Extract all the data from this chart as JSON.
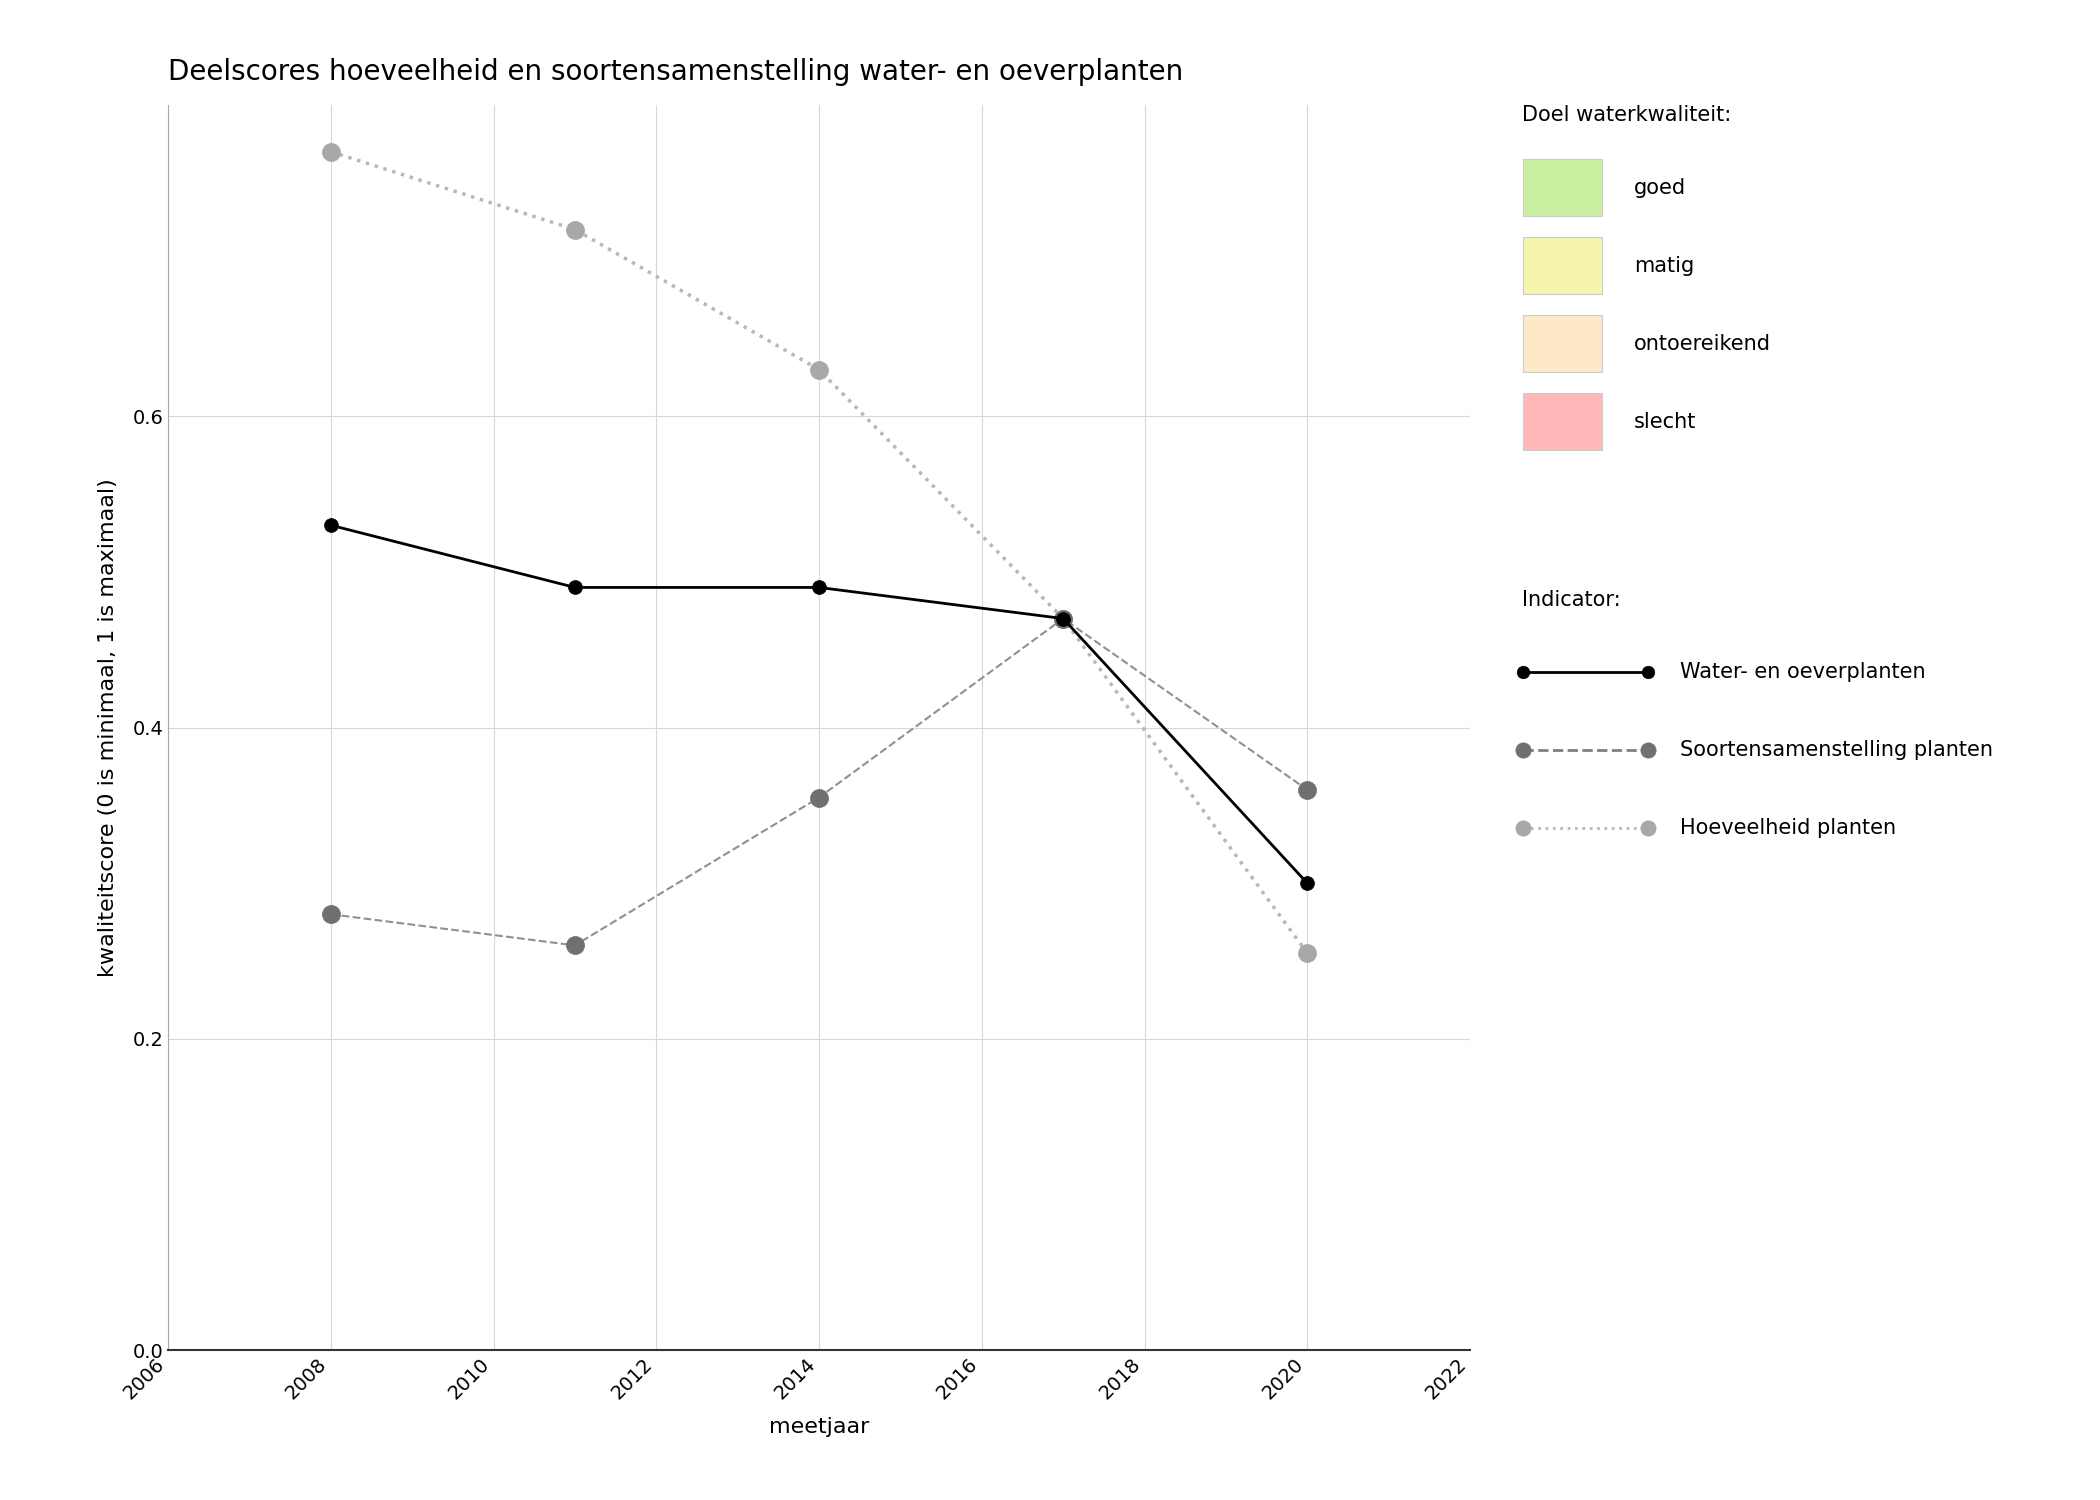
{
  "title": "Deelscores hoeveelheid en soortensamenstelling water- en oeverplanten",
  "xlabel": "meetjaar",
  "ylabel": "kwaliteitscore (0 is minimaal, 1 is maximaal)",
  "xlim": [
    2006,
    2022
  ],
  "ylim": [
    0.0,
    0.8
  ],
  "yticks": [
    0.0,
    0.2,
    0.4,
    0.6
  ],
  "xticks": [
    2006,
    2008,
    2010,
    2012,
    2014,
    2016,
    2018,
    2020,
    2022
  ],
  "series": [
    {
      "label": "Water- en oeverplanten",
      "x": [
        2008,
        2011,
        2014,
        2017,
        2020
      ],
      "y": [
        0.53,
        0.49,
        0.49,
        0.47,
        0.3
      ],
      "color": "#000000",
      "linestyle": "solid",
      "linewidth": 2.0,
      "marker": "o",
      "markersize": 10,
      "markerfacecolor": "#000000",
      "markeredgecolor": "#000000",
      "zorder": 5
    },
    {
      "label": "Soortensamenstelling planten",
      "x": [
        2008,
        2011,
        2014,
        2017,
        2020
      ],
      "y": [
        0.28,
        0.26,
        0.355,
        0.47,
        0.36
      ],
      "color": "#909090",
      "linestyle": "dashed",
      "linewidth": 1.5,
      "marker": "o",
      "markersize": 13,
      "markerfacecolor": "#707070",
      "markeredgecolor": "#707070",
      "zorder": 4
    },
    {
      "label": "Hoeveelheid planten",
      "x": [
        2008,
        2011,
        2014,
        2017,
        2020
      ],
      "y": [
        0.77,
        0.72,
        0.63,
        0.47,
        0.255
      ],
      "color": "#b8b8b8",
      "linestyle": "dotted",
      "linewidth": 2.5,
      "marker": "o",
      "markersize": 13,
      "markerfacecolor": "#a8a8a8",
      "markeredgecolor": "#a8a8a8",
      "zorder": 3
    }
  ],
  "quality_bands": [
    {
      "label": "goed",
      "color": "#c8f0a0"
    },
    {
      "label": "matig",
      "color": "#f5f5b0"
    },
    {
      "label": "ontoereikend",
      "color": "#fde8c8"
    },
    {
      "label": "slecht",
      "color": "#ffb8b8"
    }
  ],
  "background_color": "#ffffff",
  "plot_bg_color": "#ffffff",
  "grid_color": "#d8d8d8",
  "title_fontsize": 20,
  "label_fontsize": 16,
  "tick_fontsize": 14,
  "legend_fontsize": 15
}
